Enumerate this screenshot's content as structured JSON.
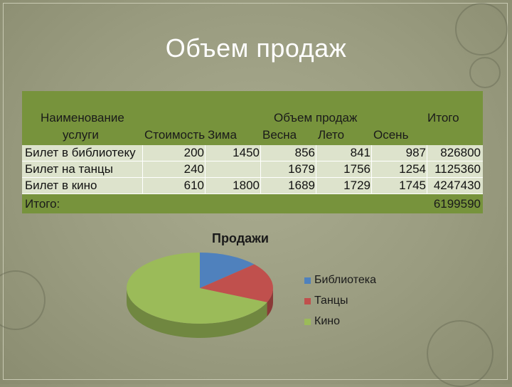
{
  "slide": {
    "title": "Объем продаж"
  },
  "table": {
    "header": {
      "service_line1": "Наименование",
      "service_line2": "услуги",
      "cost": "Стоимость",
      "sales_group": "Объем продаж",
      "winter": "Зима",
      "spring": "Весна",
      "summer": "Лето",
      "autumn": "Осень",
      "total": "Итого"
    },
    "rows": [
      {
        "service": "Билет в библиотеку",
        "cost": "200",
        "winter": "1450",
        "spring": "856",
        "summer": "841",
        "autumn": "987",
        "total": "826800"
      },
      {
        "service": "Билет на танцы",
        "cost": "240",
        "winter": "",
        "spring": "1679",
        "summer": "1756",
        "autumn": "1254",
        "total": "1125360"
      },
      {
        "service": "Билет в кино",
        "cost": "610",
        "winter": "1800",
        "spring": "1689",
        "summer": "1729",
        "autumn": "1745",
        "total": "4247430"
      }
    ],
    "grand_total_label": "Итого:",
    "grand_total_value": "6199590"
  },
  "chart_data": {
    "type": "pie",
    "title": "Продажи",
    "categories": [
      "Библиотека",
      "Танцы",
      "Кино"
    ],
    "values": [
      826800,
      1125360,
      4247430
    ],
    "colors": [
      "#4f81bd",
      "#c0504d",
      "#9bbb59"
    ],
    "legend_position": "right",
    "style": "3d"
  }
}
